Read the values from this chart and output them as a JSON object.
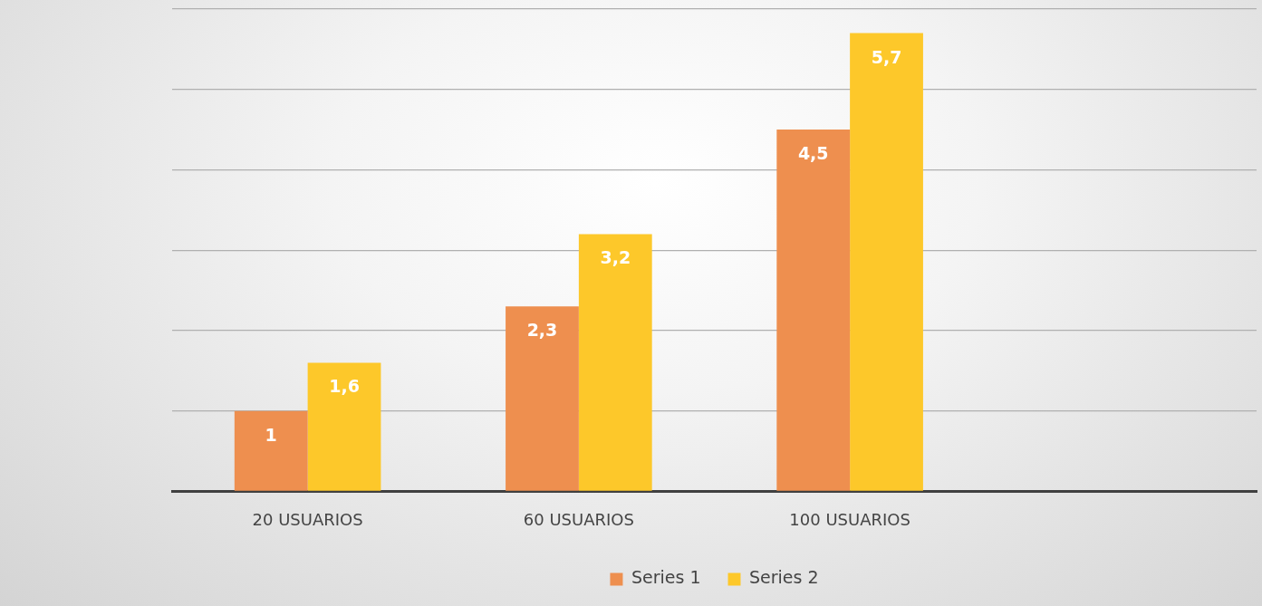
{
  "chart_data": {
    "type": "bar",
    "categories": [
      "20 USUARIOS",
      "60 USUARIOS",
      "100 USUARIOS",
      null
    ],
    "series": [
      {
        "name": "Series 1",
        "color": "#ee8f4f",
        "values": [
          1,
          2.3,
          4.5,
          null
        ],
        "value_labels": [
          "1",
          "2,3",
          "4,5",
          null
        ]
      },
      {
        "name": "Series 2",
        "color": "#fdc82a",
        "values": [
          1.6,
          3.2,
          5.7,
          null
        ],
        "value_labels": [
          "1,6",
          "3,2",
          "5,7",
          null
        ]
      }
    ],
    "relative": false,
    "ylim": [
      0,
      6
    ],
    "yticks": [
      {
        "value": 0,
        "label": null
      },
      {
        "value": 1,
        "label": null
      },
      {
        "value": 2,
        "label": null
      },
      {
        "value": 3,
        "label": null
      },
      {
        "value": 4,
        "label": null
      },
      {
        "value": 5,
        "label": null
      },
      {
        "value": 6,
        "label": null
      }
    ],
    "tick_labels": "x",
    "grid": "y",
    "legend": "bottom"
  }
}
